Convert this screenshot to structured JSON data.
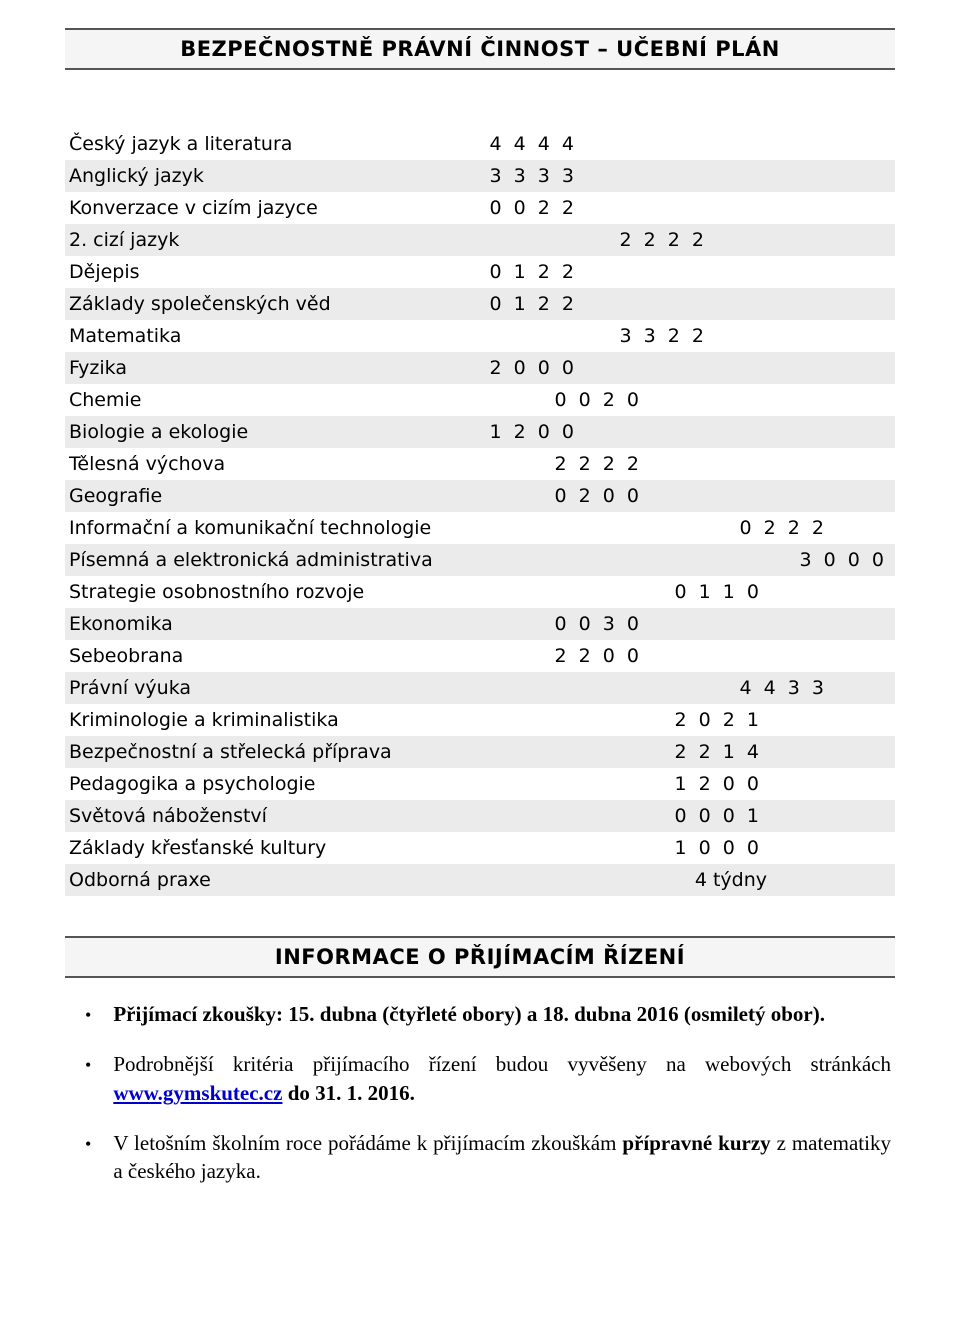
{
  "header1": "BEZPEČNOSTNĚ PRÁVNÍ ČINNOST – UČEBNÍ PLÁN",
  "header2": "INFORMACE O PŘIJÍMACÍM ŘÍZENÍ",
  "colors": {
    "background": "#ffffff",
    "text": "#000000",
    "alt_row": "#ebebeb",
    "header_bg": "#f5f5f5",
    "header_border": "#555555",
    "link": "#0000cc"
  },
  "curriculum": [
    {
      "subject": "Český jazyk a literatura",
      "value": "4 4 4 4",
      "indent": 310
    },
    {
      "subject": "Anglický jazyk",
      "value": "3 3 3 3",
      "indent": 310
    },
    {
      "subject": "Konverzace v cizím jazyce",
      "value": "0 0 2 2",
      "indent": 310
    },
    {
      "subject": "2. cizí jazyk",
      "value": "2 2 2 2",
      "indent": 180
    },
    {
      "subject": "Dějepis",
      "value": "0 1 2 2",
      "indent": 310
    },
    {
      "subject": "Základy společenských věd",
      "value": "0 1 2 2",
      "indent": 310
    },
    {
      "subject": "Matematika",
      "value": "3 3 2 2",
      "indent": 180
    },
    {
      "subject": "Fyzika",
      "value": "2 0 0 0",
      "indent": 310
    },
    {
      "subject": "Chemie",
      "value": "0 0 2 0",
      "indent": 245
    },
    {
      "subject": "Biologie a ekologie",
      "value": "1 2 0 0",
      "indent": 310
    },
    {
      "subject": "Tělesná výchova",
      "value": "2 2 2 2",
      "indent": 245
    },
    {
      "subject": "Geografie",
      "value": "0 2 0 0",
      "indent": 245
    },
    {
      "subject": "Informační a komunikační technologie",
      "value": "0 2 2 2",
      "indent": 60
    },
    {
      "subject": "Písemná a elektronická administrativa",
      "value": "3 0 0 0",
      "indent": 0
    },
    {
      "subject": "Strategie osobnostního rozvoje",
      "value": "0 1 1 0",
      "indent": 125
    },
    {
      "subject": "Ekonomika",
      "value": "0 0 3 0",
      "indent": 245
    },
    {
      "subject": "Sebeobrana",
      "value": "2 2 0 0",
      "indent": 245
    },
    {
      "subject": "Právní výuka",
      "value": "4 4 3 3",
      "indent": 60
    },
    {
      "subject": "Kriminologie a kriminalistika",
      "value": "2 0 2 1",
      "indent": 125
    },
    {
      "subject": "Bezpečnostní a střelecká příprava",
      "value": "2 2 1 4",
      "indent": 125
    },
    {
      "subject": "Pedagogika a psychologie",
      "value": "1 2 0 0",
      "indent": 125
    },
    {
      "subject": "Světová náboženství",
      "value": "0 0 0 1",
      "indent": 125
    },
    {
      "subject": "Základy křesťanské kultury",
      "value": "1 0 0 0",
      "indent": 125
    },
    {
      "subject": "Odborná praxe",
      "value": "4 týdny",
      "indent": 120,
      "letterSpacing": "normal"
    }
  ],
  "bullets": {
    "b1_prefix": "Přijímací zkoušky: 15. dubna (čtyřleté obory) a 18. dubna 2016 (osmiletý obor).",
    "b2_pre": "Podrobnější kritéria přijímacího řízení budou vyvěšeny na webových stránkách ",
    "b2_link": "www.gymskutec.cz",
    "b2_post": "  do 31. 1. 2016.",
    "b3_pre": "V letošním školním roce pořádáme k přijímacím zkouškám ",
    "b3_bold": "přípravné kurzy ",
    "b3_post": "z matematiky a českého jazyka."
  }
}
